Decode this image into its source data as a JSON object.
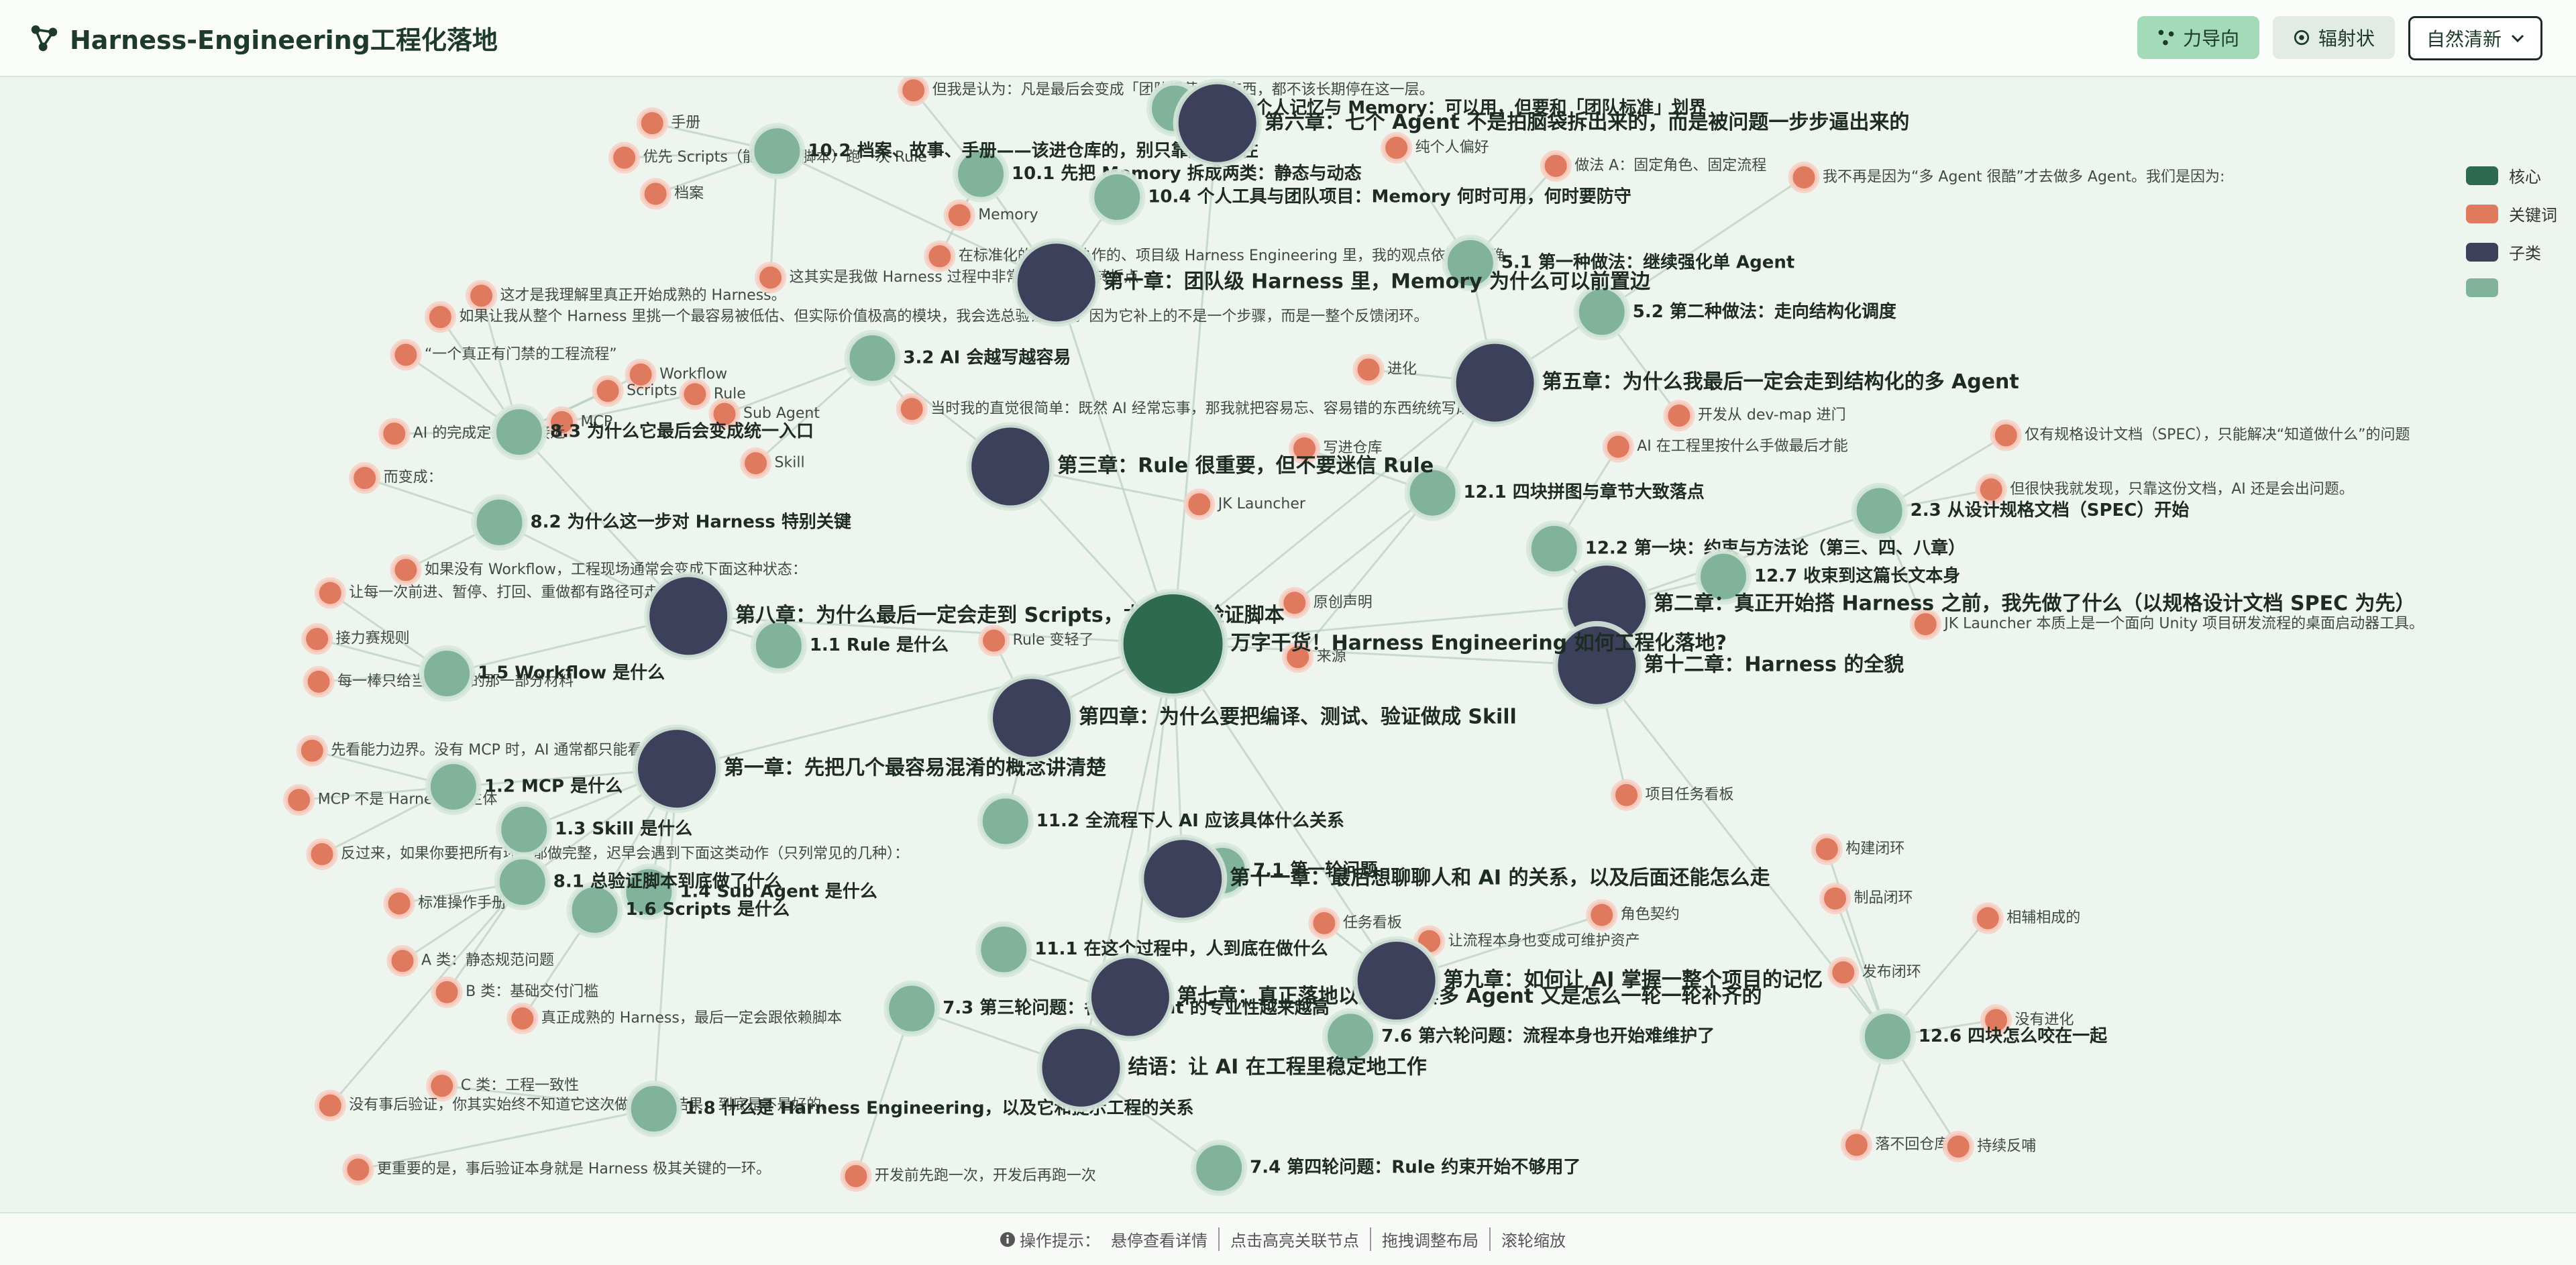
{
  "header": {
    "title": "Harness-Engineering工程化落地",
    "buttons": [
      "力导向",
      "辐射状"
    ],
    "theme": "自然清新"
  },
  "legend": [
    {
      "label": "核心",
      "color": "#2d6a4f"
    },
    {
      "label": "关键词",
      "color": "#e07a5f"
    },
    {
      "label": "子类",
      "color": "#3d405b"
    },
    {
      "color": "#81b29a"
    }
  ],
  "graph": {
    "nodes": [
      {
        "label": "万字干货！Harness Engineering 如何工程化落地?",
        "group": 0
      },
      {
        "label": "第一章：先把几个最容易混淆的概念讲清楚",
        "group": 2
      },
      {
        "label": "第二章：真正开始搭 Harness 之前，我先做了什么（以规格设计文档 SPEC 为先）",
        "group": 2
      },
      {
        "label": "第三章：Rule 很重要，但不要迷信 Rule",
        "group": 2
      },
      {
        "label": "第四章：为什么要把编译、测试、验证做成 Skill",
        "group": 2
      },
      {
        "label": "第五章：为什么我最后一定会走到结构化的多 Agent",
        "group": 2
      },
      {
        "label": "第六章：七个 Agent 不是拍脑袋拆出来的，而是被问题一步步逼出来的",
        "group": 2
      },
      {
        "label": "第七章：真正落地以后，这套多 Agent 又是怎么一轮一轮补齐的",
        "group": 2
      },
      {
        "label": "第八章：为什么最后一定会走到 Scripts，尤其是总验证脚本",
        "group": 2
      },
      {
        "label": "第九章：如何让 AI 掌握一整个项目的记忆",
        "group": 2
      },
      {
        "label": "第十章：团队级 Harness 里，Memory 为什么可以前置边",
        "group": 2
      },
      {
        "label": "第十一章：最后想聊聊人和 AI 的关系，以及后面还能怎么走",
        "group": 2
      },
      {
        "label": "第十二章：Harness 的全貌",
        "group": 2
      },
      {
        "label": "结语：让 AI 在工程里稳定地工作",
        "group": 2
      },
      {
        "label": "1.1 Rule 是什么",
        "group": 3
      },
      {
        "label": "1.2 MCP 是什么",
        "group": 3
      },
      {
        "label": "1.3 Skill 是什么",
        "group": 3
      },
      {
        "label": "1.4 Sub Agent 是什么",
        "group": 3
      },
      {
        "label": "1.5 Workflow 是什么",
        "group": 3
      },
      {
        "label": "1.6 Scripts 是什么",
        "group": 3
      },
      {
        "label": "1.8 什么是 Harness Engineering，以及它和提示工程的关系",
        "group": 3
      },
      {
        "label": "2.3 从设计规格文档（SPEC）开始",
        "group": 3
      },
      {
        "label": "3.2 AI 会越写越容易",
        "group": 3
      },
      {
        "label": "5.1 第一种做法：继续强化单 Agent",
        "group": 3
      },
      {
        "label": "5.2 第二种做法：走向结构化调度",
        "group": 3
      },
      {
        "label": "7.1 第一轮问题",
        "group": 3
      },
      {
        "label": "7.3 第三轮问题：各个 Agent 的专业性越来越高",
        "group": 3
      },
      {
        "label": "7.4 第四轮问题：Rule 约束开始不够用了",
        "group": 3
      },
      {
        "label": "7.6 第六轮问题：流程本身也开始难维护了",
        "group": 3
      },
      {
        "label": "8.1 总验证脚本到底做了什么",
        "group": 3
      },
      {
        "label": "8.2 为什么这一步对 Harness 特别关键",
        "group": 3
      },
      {
        "label": "8.3 为什么它最后会变成统一入口",
        "group": 3
      },
      {
        "label": "10.1 先把 Memory 拆成两类：静态与动态",
        "group": 3
      },
      {
        "label": "10.2 档案、故事、手册——该进仓库的，别只靠脑子记住",
        "group": 3
      },
      {
        "label": "10.3 个人记忆与 Memory：可以用，但要和「团队标准」划界",
        "group": 3
      },
      {
        "label": "10.4 个人工具与团队项目：Memory 何时可用，何时要防守",
        "group": 3
      },
      {
        "label": "11.1 在这个过程中，人到底在做什么",
        "group": 3
      },
      {
        "label": "11.2 全流程下人 AI 应该具体什么关系",
        "group": 3
      },
      {
        "label": "12.1 四块拼图与章节大致落点",
        "group": 3
      },
      {
        "label": "12.2 第一块：约束与方法论（第三、四、八章）",
        "group": 3
      },
      {
        "label": "12.6 四块怎么咬在一起",
        "group": 3
      },
      {
        "label": "12.7 收束到这篇长文本身",
        "group": 3
      },
      {
        "label": "手册",
        "group": 1
      },
      {
        "label": "优先 Scripts（能判定就脚本）跑一次 Rule",
        "group": 1
      },
      {
        "label": "档案",
        "group": 1
      },
      {
        "label": "Memory",
        "group": 1
      },
      {
        "label": "纯个人偏好",
        "group": 1
      },
      {
        "label": "做法 A：固定角色、固定流程",
        "group": 1
      },
      {
        "label": "Workflow",
        "group": 1
      },
      {
        "label": "Scripts",
        "group": 1
      },
      {
        "label": "Rule",
        "group": 1
      },
      {
        "label": "Sub Agent",
        "group": 1
      },
      {
        "label": "MCP",
        "group": 1
      },
      {
        "label": "Skill",
        "group": 1
      },
      {
        "label": "AI 的完成定义不再接近",
        "group": 1
      },
      {
        "label": "而变成：",
        "group": 1
      },
      {
        "label": "接力赛规则",
        "group": 1
      },
      {
        "label": "MCP 不是 Harness 的主体",
        "group": 1
      },
      {
        "label": "标准操作手册",
        "group": 1
      },
      {
        "label": "A 类：静态规范问题",
        "group": 1
      },
      {
        "label": "B 类：基础交付门槛",
        "group": 1
      },
      {
        "label": "C 类：工程一致性",
        "group": 1
      },
      {
        "label": "任务看板",
        "group": 1
      },
      {
        "label": "角色契约",
        "group": 1
      },
      {
        "label": "制品闭环",
        "group": 1
      },
      {
        "label": "相辅相成的",
        "group": 1
      },
      {
        "label": "发布闭环",
        "group": 1
      },
      {
        "label": "原创声明",
        "group": 1
      },
      {
        "label": "来源",
        "group": 1
      },
      {
        "label": "Rule 变轻了",
        "group": 1
      },
      {
        "label": "JK Launcher",
        "group": 1
      },
      {
        "label": "写进仓库",
        "group": 1
      },
      {
        "label": "进化",
        "group": 1
      },
      {
        "label": "我不再是因为“多 Agent 很酷”才去做多 Agent。我们是因为:",
        "group": 1
      },
      {
        "label": "开发从 dev-map 进门",
        "group": 1
      },
      {
        "label": "AI 在工程里按什么手做最后才能",
        "group": 1
      },
      {
        "label": "仅有规格设计文档（SPEC），只能解决“知道做什么”的问题",
        "group": 1
      },
      {
        "label": "但很快我就发现，只靠这份文档，AI 还是会出问题。",
        "group": 1
      },
      {
        "label": "JK Launcher 本质上是一个面向 Unity 项目研发流程的桌面启动器工具。",
        "group": 1
      },
      {
        "label": "项目任务看板",
        "group": 1
      },
      {
        "label": "构建闭环",
        "group": 1
      },
      {
        "label": "没有进化",
        "group": 1
      },
      {
        "label": "落不回仓库",
        "group": 1
      },
      {
        "label": "持续反哺",
        "group": 1
      },
      {
        "label": "真正成熟的 Harness，最后一定会跟依赖脚本",
        "group": 1
      },
      {
        "label": "反过来，如果你要把所有环节都做完整，迟早会遇到下面这类动作（只列常见的几种）：",
        "group": 1
      },
      {
        "label": "先看能力边界。没有 MCP 时，AI 通常都只能看到",
        "group": 1
      },
      {
        "label": "每一棒只给当前该看的那一部分材料",
        "group": 1
      },
      {
        "label": "让每一次前进、暂停、打回、重做都有路径可走",
        "group": 1
      },
      {
        "label": "如果没有 Workflow，工程现场通常会变成下面这种状态：",
        "group": 1
      },
      {
        "label": "这才是我理解里真正开始成熟的 Harness。",
        "group": 1
      },
      {
        "label": "如果让我从整个 Harness 里挑一个最容易被低估、但实际价值极高的模块，我会选总验证脚本。因为它补上的不是一个步骤，而是一整个反馈闭环。",
        "group": 1
      },
      {
        "label": "“一个真正有门禁的工程流程”",
        "group": 1
      },
      {
        "label": "没有事后验证，你其实始终不知道它这次做出来的结果，到底是不是好的。",
        "group": 1
      },
      {
        "label": "更重要的是，事后验证本身就是 Harness 极其关键的一环。",
        "group": 1
      },
      {
        "label": "让流程本身也变成可维护资产",
        "group": 1
      },
      {
        "label": "开发前先跑一次，开发后再跑一次",
        "group": 1
      },
      {
        "label": "在标准化的、多人协作的、项目级 Harness Engineering 里，我的观点依旧很明确",
        "group": 1
      },
      {
        "label": "这其实是我做 Harness 过程中非常关键的一个转折点",
        "group": 1
      },
      {
        "label": "但我是认为：凡是最后会变成「团队规范」的东西，都不该长期停在这一层。",
        "group": 1
      },
      {
        "label": "当时我的直觉很简单：既然 AI 经常忘事，那我就把容易忘、容易错的东西统统写成 Rule。",
        "group": 1
      }
    ]
  },
  "footer": {
    "label": "操作提示：",
    "hints": [
      "悬停查看详情",
      "点击高亮关联节点",
      "拖拽调整布局",
      "滚轮缩放"
    ]
  }
}
